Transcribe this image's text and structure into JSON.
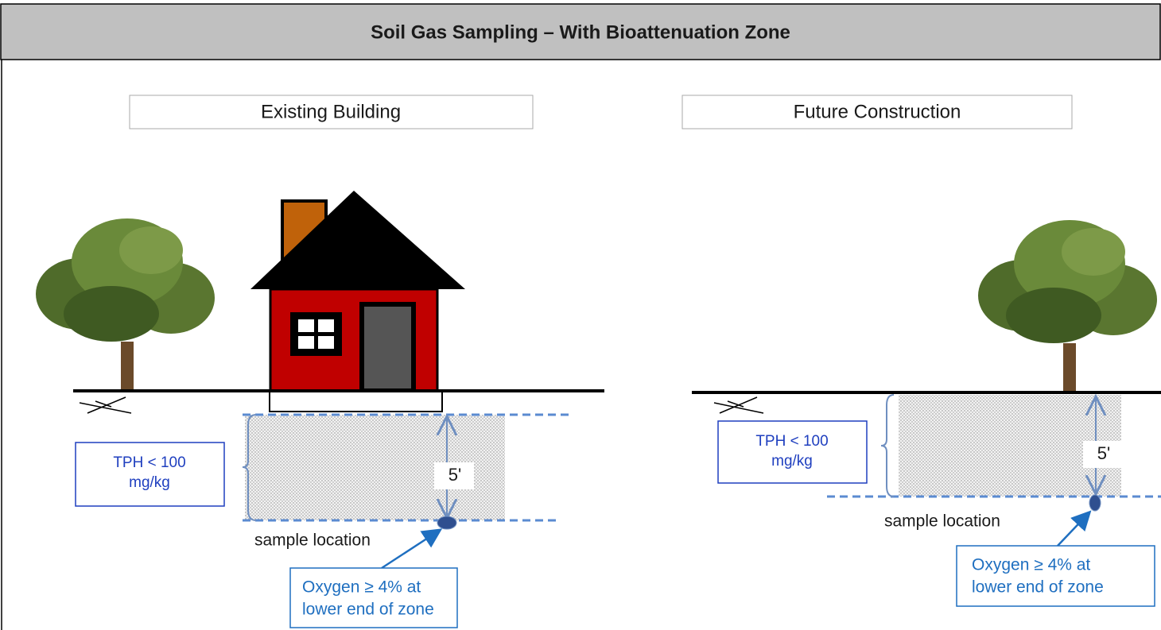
{
  "header": {
    "title": "Soil Gas Sampling – With Bioattenuation Zone"
  },
  "panels": [
    {
      "heading": "Existing Building",
      "tph": [
        "TPH < 100",
        "mg/kg"
      ],
      "depth": "5'",
      "sample_label": "sample location",
      "oxygen": [
        "Oxygen ≥ 4% at",
        "lower end of zone"
      ]
    },
    {
      "heading": "Future Construction",
      "tph": [
        "TPH < 100",
        "mg/kg"
      ],
      "depth": "5'",
      "sample_label": "sample location",
      "oxygen": [
        "Oxygen ≥ 4% at",
        "lower end of zone"
      ]
    }
  ]
}
